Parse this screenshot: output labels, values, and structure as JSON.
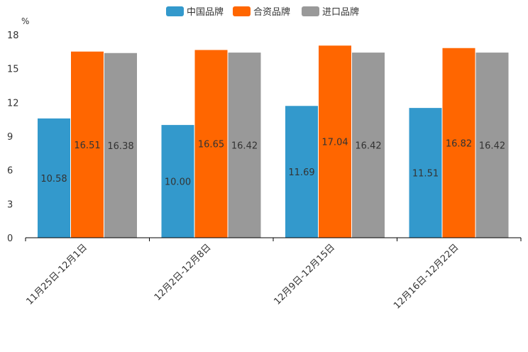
{
  "chart_data": {
    "type": "bar",
    "unit": "%",
    "categories": [
      "11月25日-12月1日",
      "12月2日-12月8日",
      "12月9日-12月15日",
      "12月16日-12月22日"
    ],
    "series": [
      {
        "name": "中国品牌",
        "color": "#3399cc",
        "values": [
          10.58,
          10.0,
          11.69,
          11.51
        ]
      },
      {
        "name": "合资品牌",
        "color": "#ff6600",
        "values": [
          16.51,
          16.65,
          17.04,
          16.82
        ]
      },
      {
        "name": "进口品牌",
        "color": "#999999",
        "values": [
          16.38,
          16.42,
          16.42,
          16.42
        ]
      }
    ],
    "value_labels": [
      [
        "10.58",
        "10.00",
        "11.69",
        "11.51"
      ],
      [
        "16.51",
        "16.65",
        "17.04",
        "16.82"
      ],
      [
        "16.38",
        "16.42",
        "16.42",
        "16.42"
      ]
    ],
    "ylim": [
      0,
      18
    ],
    "yticks": [
      0,
      3,
      6,
      9,
      12,
      15,
      18
    ],
    "legend_position": "top-center"
  }
}
